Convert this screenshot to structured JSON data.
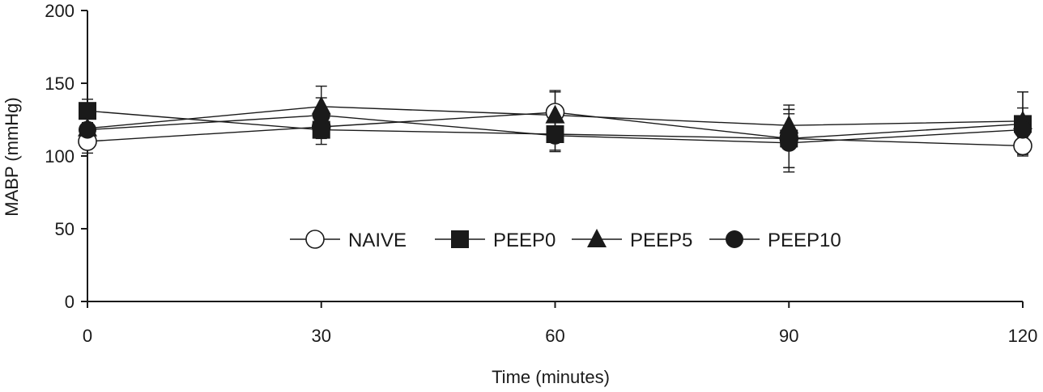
{
  "chart_data": {
    "type": "line",
    "title": "",
    "xlabel": "Time (minutes)",
    "ylabel": "MABP (mmHg)",
    "x": [
      0,
      30,
      60,
      90,
      120
    ],
    "x_tick_labels": [
      "0",
      "30",
      "60",
      "90",
      "120"
    ],
    "y_tick_labels": [
      "0",
      "50",
      "100",
      "150",
      "200"
    ],
    "xlim": [
      0,
      120
    ],
    "ylim": [
      0,
      200
    ],
    "grid": false,
    "legend_position": "center",
    "series": [
      {
        "name": "NAIVE",
        "marker": "open-circle",
        "values": [
          110,
          120,
          130,
          112,
          107
        ],
        "error": [
          8,
          8,
          15,
          20,
          6
        ]
      },
      {
        "name": "PEEP0",
        "marker": "filled-square",
        "values": [
          131,
          118,
          115,
          112,
          122
        ],
        "error": [
          8,
          10,
          12,
          20,
          22
        ]
      },
      {
        "name": "PEEP5",
        "marker": "filled-triangle",
        "values": [
          119,
          134,
          128,
          121,
          124
        ],
        "error": [
          10,
          14,
          16,
          14,
          20
        ]
      },
      {
        "name": "PEEP10",
        "marker": "filled-circle",
        "values": [
          118,
          128,
          114,
          109,
          118
        ],
        "error": [
          10,
          12,
          10,
          20,
          15
        ]
      }
    ],
    "colors": {
      "line": "#1a1a1a",
      "background": "#ffffff"
    }
  }
}
